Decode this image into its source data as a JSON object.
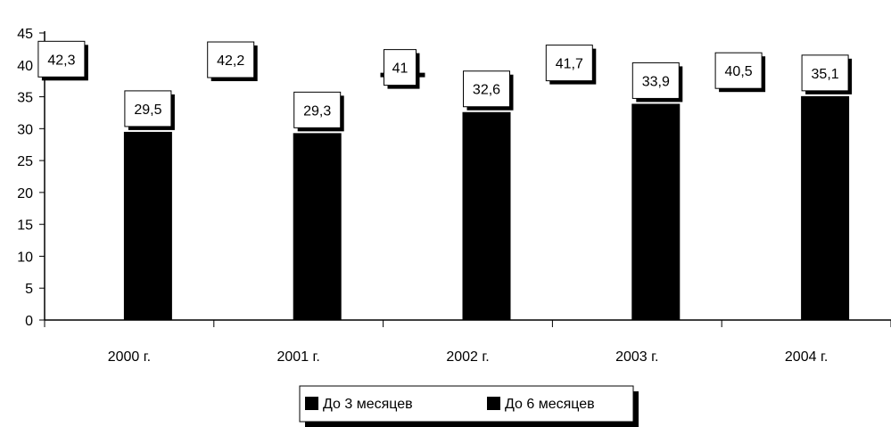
{
  "chart_data": {
    "type": "bar",
    "categories": [
      "2000 г.",
      "2001 г.",
      "2002 г.",
      "2003 г.",
      "2004 г."
    ],
    "series": [
      {
        "name": "До 3 месяцев",
        "values": [
          42.3,
          42.2,
          41,
          41.7,
          40.5
        ],
        "labels": [
          "42,3",
          "42,2",
          "41",
          "41,7",
          "40,5"
        ]
      },
      {
        "name": "До 6 месяцев",
        "values": [
          29.5,
          29.3,
          32.6,
          33.9,
          35.1
        ],
        "labels": [
          "29,5",
          "29,3",
          "32,6",
          "33,9",
          "35,1"
        ]
      }
    ],
    "yticks": [
      "0",
      "5",
      "10",
      "15",
      "20",
      "25",
      "30",
      "35",
      "40",
      "45"
    ],
    "ylim": [
      0,
      45
    ],
    "legend_position": "bottom-center",
    "colors": {
      "series": "#000000",
      "background": "#ffffff"
    }
  }
}
